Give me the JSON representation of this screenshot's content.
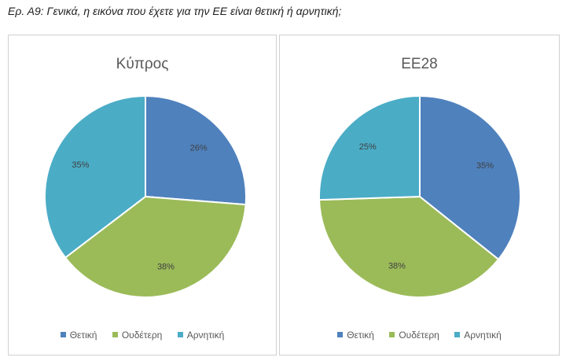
{
  "question": "Ερ. Α9: Γενικά, η εικόνα που έχετε για την ΕΕ είναι θετική ή αρνητική;",
  "colors": {
    "positive": "#4f81bd",
    "neutral": "#9bbb59",
    "negative": "#4bacc6"
  },
  "chart_data": [
    {
      "type": "pie",
      "title": "Κύπρος",
      "categories": [
        "Θετική",
        "Ουδέτερη",
        "Αρνητική"
      ],
      "values": [
        26,
        38,
        35
      ],
      "labels": [
        "26%",
        "38%",
        "35%"
      ],
      "legend": "bottom"
    },
    {
      "type": "pie",
      "title": "ΕΕ28",
      "categories": [
        "Θετική",
        "Ουδέτερη",
        "Αρνητική"
      ],
      "values": [
        35,
        38,
        25
      ],
      "labels": [
        "35%",
        "38%",
        "25%"
      ],
      "legend": "bottom"
    }
  ]
}
